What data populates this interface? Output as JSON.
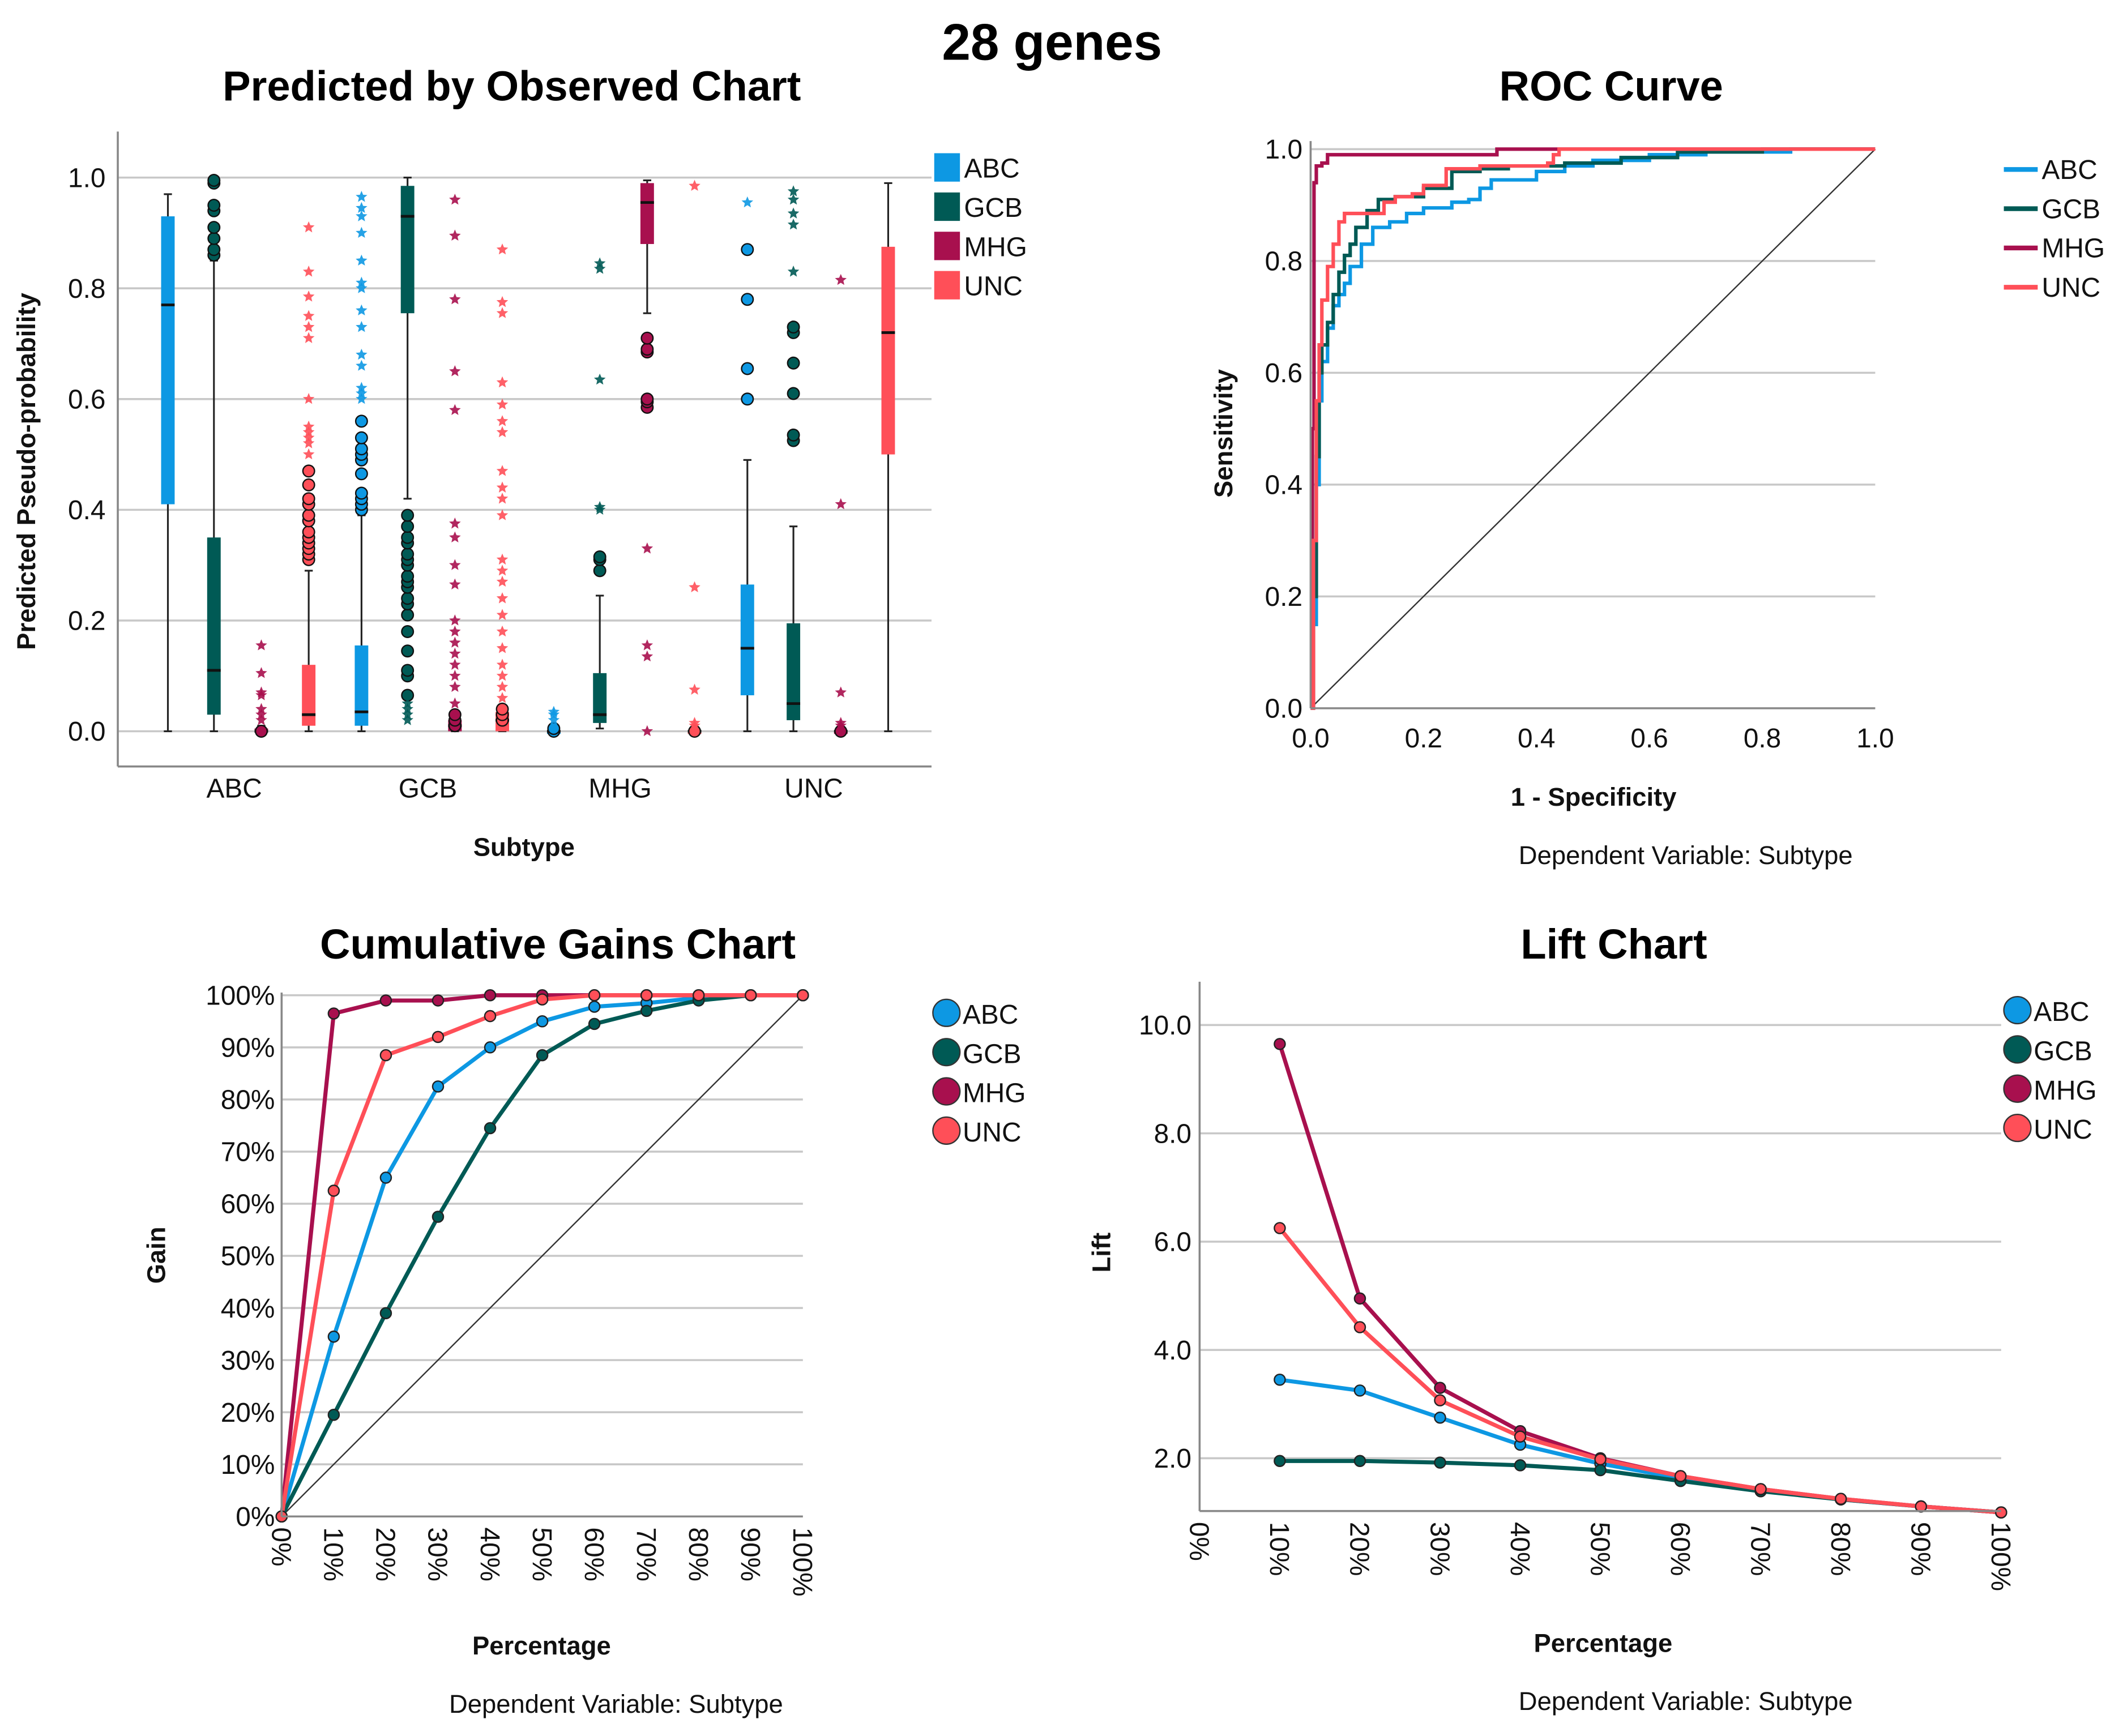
{
  "figure_title": "28 genes",
  "colors": {
    "ABC": "#0d98e3",
    "GCB": "#005a55",
    "MHG": "#a8104e",
    "UNC": "#ff4f58"
  },
  "chart_data": [
    {
      "id": "boxplot",
      "type": "box",
      "title": "Predicted by Observed Chart",
      "xlabel": "Subtype",
      "ylabel": "Predicted Pseudo-probability",
      "ylim": [
        0.0,
        1.0
      ],
      "yticks": [
        "0.0",
        "0.2",
        "0.4",
        "0.6",
        "0.8",
        "1.0"
      ],
      "ytick_values": [
        0.0,
        0.2,
        0.4,
        0.6,
        0.8,
        1.0
      ],
      "categories": [
        "ABC",
        "GCB",
        "MHG",
        "UNC"
      ],
      "legend": [
        "ABC",
        "GCB",
        "MHG",
        "UNC"
      ],
      "legend_position": "top-right",
      "grid": true,
      "groups": [
        {
          "category": "ABC",
          "boxes": [
            {
              "series": "ABC",
              "min": 0.0,
              "q1": 0.41,
              "median": 0.77,
              "q3": 0.93,
              "max": 0.97,
              "outliers": [],
              "extremes": []
            },
            {
              "series": "GCB",
              "min": 0.0,
              "q1": 0.03,
              "median": 0.11,
              "q3": 0.35,
              "max": 0.85,
              "outliers": [
                0.86,
                0.87,
                0.89,
                0.91,
                0.94,
                0.95,
                0.99,
                0.995
              ],
              "extremes": []
            },
            {
              "series": "MHG",
              "min": 0.0,
              "q1": 0.0,
              "median": 0.0,
              "q3": 0.005,
              "max": 0.01,
              "outliers": [
                0.0
              ],
              "extremes": [
                0.02,
                0.03,
                0.04,
                0.065,
                0.07,
                0.105,
                0.155
              ]
            },
            {
              "series": "UNC",
              "min": 0.0,
              "q1": 0.01,
              "median": 0.03,
              "q3": 0.12,
              "max": 0.29,
              "outliers": [
                0.31,
                0.32,
                0.33,
                0.34,
                0.35,
                0.36,
                0.38,
                0.39,
                0.41,
                0.42,
                0.445,
                0.47
              ],
              "extremes": [
                0.5,
                0.52,
                0.53,
                0.54,
                0.55,
                0.6,
                0.71,
                0.73,
                0.75,
                0.785,
                0.83,
                0.91
              ]
            }
          ]
        },
        {
          "category": "GCB",
          "boxes": [
            {
              "series": "ABC",
              "min": 0.0,
              "q1": 0.01,
              "median": 0.035,
              "q3": 0.155,
              "max": 0.39,
              "outliers": [
                0.4,
                0.41,
                0.42,
                0.43,
                0.465,
                0.49,
                0.5,
                0.51,
                0.53,
                0.56
              ],
              "extremes": [
                0.6,
                0.61,
                0.62,
                0.66,
                0.68,
                0.73,
                0.76,
                0.8,
                0.81,
                0.85,
                0.9,
                0.93,
                0.945,
                0.965
              ]
            },
            {
              "series": "GCB",
              "min": 0.42,
              "q1": 0.755,
              "median": 0.93,
              "q3": 0.985,
              "max": 1.0,
              "outliers": [
                0.065,
                0.1,
                0.11,
                0.145,
                0.18,
                0.21,
                0.23,
                0.24,
                0.26,
                0.27,
                0.28,
                0.3,
                0.31,
                0.32,
                0.34,
                0.35,
                0.37,
                0.39
              ],
              "extremes": [
                0.02,
                0.03,
                0.04,
                0.05
              ]
            },
            {
              "series": "MHG",
              "min": 0.0,
              "q1": 0.0,
              "median": 0.01,
              "q3": 0.02,
              "max": 0.03,
              "outliers": [
                0.01,
                0.02,
                0.03
              ],
              "extremes": [
                0.05,
                0.08,
                0.1,
                0.12,
                0.14,
                0.16,
                0.18,
                0.2,
                0.265,
                0.3,
                0.35,
                0.375,
                0.58,
                0.65,
                0.78,
                0.895,
                0.96
              ]
            },
            {
              "series": "UNC",
              "min": 0.0,
              "q1": 0.0,
              "median": 0.02,
              "q3": 0.035,
              "max": 0.04,
              "outliers": [
                0.02,
                0.03,
                0.04
              ],
              "extremes": [
                0.06,
                0.08,
                0.1,
                0.12,
                0.15,
                0.18,
                0.21,
                0.24,
                0.27,
                0.29,
                0.31,
                0.39,
                0.42,
                0.44,
                0.47,
                0.54,
                0.56,
                0.59,
                0.63,
                0.755,
                0.775,
                0.87
              ]
            }
          ]
        },
        {
          "category": "MHG",
          "boxes": [
            {
              "series": "ABC",
              "min": 0.0,
              "q1": 0.0,
              "median": 0.0,
              "q3": 0.0,
              "max": 0.0,
              "outliers": [
                0.0,
                0.005
              ],
              "extremes": [
                0.02,
                0.03,
                0.035
              ]
            },
            {
              "series": "GCB",
              "min": 0.005,
              "q1": 0.015,
              "median": 0.03,
              "q3": 0.105,
              "max": 0.245,
              "outliers": [
                0.29,
                0.31,
                0.315
              ],
              "extremes": [
                0.4,
                0.405,
                0.635,
                0.835,
                0.845
              ]
            },
            {
              "series": "MHG",
              "min": 0.755,
              "q1": 0.88,
              "median": 0.955,
              "q3": 0.99,
              "max": 0.995,
              "outliers": [
                0.585,
                0.595,
                0.6,
                0.685,
                0.69,
                0.71
              ],
              "extremes": [
                0.0,
                0.135,
                0.155,
                0.33
              ]
            },
            {
              "series": "UNC",
              "min": 0.0,
              "q1": 0.0,
              "median": 0.0,
              "q3": 0.0,
              "max": 0.0,
              "outliers": [
                0.0
              ],
              "extremes": [
                0.01,
                0.015,
                0.075,
                0.26,
                0.985
              ]
            }
          ]
        },
        {
          "category": "UNC",
          "boxes": [
            {
              "series": "ABC",
              "min": 0.0,
              "q1": 0.065,
              "median": 0.15,
              "q3": 0.265,
              "max": 0.49,
              "outliers": [
                0.6,
                0.655,
                0.78,
                0.87
              ],
              "extremes": [
                0.955
              ]
            },
            {
              "series": "GCB",
              "min": 0.0,
              "q1": 0.02,
              "median": 0.05,
              "q3": 0.195,
              "max": 0.37,
              "outliers": [
                0.525,
                0.535,
                0.61,
                0.665,
                0.72,
                0.73
              ],
              "extremes": [
                0.83,
                0.915,
                0.935,
                0.96,
                0.975
              ]
            },
            {
              "series": "MHG",
              "min": 0.0,
              "q1": 0.0,
              "median": 0.0,
              "q3": 0.0,
              "max": 0.0,
              "outliers": [
                0.0
              ],
              "extremes": [
                0.01,
                0.015,
                0.07,
                0.41,
                0.815
              ]
            },
            {
              "series": "UNC",
              "min": 0.0,
              "q1": 0.5,
              "median": 0.72,
              "q3": 0.875,
              "max": 0.99,
              "outliers": [],
              "extremes": []
            }
          ]
        }
      ]
    },
    {
      "id": "roc",
      "type": "line",
      "title": "ROC Curve",
      "xlabel": "1 - Specificity",
      "ylabel": "Sensitivity",
      "footnote": "Dependent Variable: Subtype",
      "xlim": [
        0.0,
        1.0
      ],
      "ylim": [
        0.0,
        1.0
      ],
      "xticks": [
        "0.0",
        "0.2",
        "0.4",
        "0.6",
        "0.8",
        "1.0"
      ],
      "yticks": [
        "0.0",
        "0.2",
        "0.4",
        "0.6",
        "0.8",
        "1.0"
      ],
      "tick_values": [
        0.0,
        0.2,
        0.4,
        0.6,
        0.8,
        1.0
      ],
      "legend_position": "right",
      "grid": true,
      "reference_line": [
        [
          0,
          0
        ],
        [
          1,
          1
        ]
      ],
      "series": [
        {
          "name": "ABC",
          "x": [
            0,
            0.005,
            0.01,
            0.015,
            0.02,
            0.03,
            0.04,
            0.05,
            0.06,
            0.07,
            0.09,
            0.11,
            0.14,
            0.17,
            0.2,
            0.25,
            0.28,
            0.3,
            0.32,
            0.4,
            0.45,
            0.5,
            0.6,
            0.7,
            0.85,
            1.0
          ],
          "y": [
            0,
            0.15,
            0.4,
            0.55,
            0.62,
            0.68,
            0.72,
            0.74,
            0.76,
            0.79,
            0.83,
            0.86,
            0.87,
            0.885,
            0.895,
            0.905,
            0.91,
            0.93,
            0.945,
            0.96,
            0.97,
            0.98,
            0.99,
            0.995,
            1.0,
            1.0
          ]
        },
        {
          "name": "GCB",
          "x": [
            0,
            0.005,
            0.01,
            0.015,
            0.02,
            0.03,
            0.04,
            0.05,
            0.06,
            0.07,
            0.08,
            0.1,
            0.12,
            0.15,
            0.2,
            0.25,
            0.3,
            0.35,
            0.45,
            0.55,
            0.65,
            0.8,
            1.0
          ],
          "y": [
            0,
            0.2,
            0.45,
            0.6,
            0.65,
            0.69,
            0.74,
            0.78,
            0.81,
            0.83,
            0.86,
            0.89,
            0.91,
            0.915,
            0.93,
            0.96,
            0.965,
            0.97,
            0.975,
            0.985,
            0.995,
            1.0,
            1.0
          ]
        },
        {
          "name": "MHG",
          "x": [
            0,
            0.003,
            0.006,
            0.01,
            0.02,
            0.03,
            0.33,
            0.33,
            1.0
          ],
          "y": [
            0,
            0.5,
            0.94,
            0.97,
            0.975,
            0.99,
            0.99,
            1.0,
            1.0
          ]
        },
        {
          "name": "UNC",
          "x": [
            0,
            0.005,
            0.01,
            0.015,
            0.02,
            0.03,
            0.04,
            0.05,
            0.06,
            0.12,
            0.13,
            0.15,
            0.18,
            0.2,
            0.24,
            0.3,
            0.42,
            0.43,
            0.44,
            1.0
          ],
          "y": [
            0,
            0.3,
            0.55,
            0.65,
            0.73,
            0.79,
            0.83,
            0.87,
            0.885,
            0.885,
            0.905,
            0.915,
            0.92,
            0.935,
            0.965,
            0.97,
            0.975,
            0.99,
            1.0,
            1.0
          ]
        }
      ]
    },
    {
      "id": "gains",
      "type": "line",
      "title": "Cumulative Gains Chart",
      "xlabel": "Percentage",
      "ylabel": "Gain",
      "footnote": "Dependent Variable: Subtype",
      "xlim": [
        0,
        100
      ],
      "ylim": [
        0,
        100
      ],
      "x": [
        0,
        10,
        20,
        30,
        40,
        50,
        60,
        70,
        80,
        90,
        100
      ],
      "xticks": [
        "0%",
        "10%",
        "20%",
        "30%",
        "40%",
        "50%",
        "60%",
        "70%",
        "80%",
        "90%",
        "100%"
      ],
      "yticks": [
        "0%",
        "10%",
        "20%",
        "30%",
        "40%",
        "50%",
        "60%",
        "70%",
        "80%",
        "90%",
        "100%"
      ],
      "legend_position": "right",
      "grid": true,
      "reference_line": [
        [
          0,
          0
        ],
        [
          100,
          100
        ]
      ],
      "series": [
        {
          "name": "ABC",
          "values": [
            0,
            34.5,
            65,
            82.5,
            90,
            95,
            97.8,
            98.5,
            99.5,
            100,
            100
          ]
        },
        {
          "name": "GCB",
          "values": [
            0,
            19.5,
            39,
            57.5,
            74.5,
            88.5,
            94.5,
            97,
            99,
            100,
            100
          ]
        },
        {
          "name": "MHG",
          "values": [
            0,
            96.5,
            99,
            99,
            100,
            100,
            100,
            100,
            100,
            100,
            100
          ]
        },
        {
          "name": "UNC",
          "values": [
            0,
            62.5,
            88.5,
            92,
            96,
            99.2,
            100,
            100,
            100,
            100,
            100
          ]
        }
      ]
    },
    {
      "id": "lift",
      "type": "line",
      "title": "Lift Chart",
      "xlabel": "Percentage",
      "ylabel": "Lift",
      "footnote": "Dependent Variable: Subtype",
      "xlim": [
        0,
        100
      ],
      "ylim": [
        1.0,
        10.5
      ],
      "x": [
        10,
        20,
        30,
        40,
        50,
        60,
        70,
        80,
        90,
        100
      ],
      "xticks": [
        "0%",
        "10%",
        "20%",
        "30%",
        "40%",
        "50%",
        "60%",
        "70%",
        "80%",
        "90%",
        "100%"
      ],
      "xtick_values": [
        0,
        10,
        20,
        30,
        40,
        50,
        60,
        70,
        80,
        90,
        100
      ],
      "yticks": [
        "2.0",
        "4.0",
        "6.0",
        "8.0",
        "10.0"
      ],
      "ytick_values": [
        2.0,
        4.0,
        6.0,
        8.0,
        10.0
      ],
      "legend_position": "top-right",
      "grid": true,
      "series": [
        {
          "name": "ABC",
          "values": [
            3.45,
            3.25,
            2.75,
            2.25,
            1.9,
            1.63,
            1.41,
            1.24,
            1.11,
            1.0
          ]
        },
        {
          "name": "GCB",
          "values": [
            1.95,
            1.95,
            1.92,
            1.87,
            1.78,
            1.58,
            1.39,
            1.24,
            1.11,
            1.0
          ]
        },
        {
          "name": "MHG",
          "values": [
            9.65,
            4.95,
            3.3,
            2.5,
            2.0,
            1.67,
            1.43,
            1.25,
            1.11,
            1.0
          ]
        },
        {
          "name": "UNC",
          "values": [
            6.25,
            4.42,
            3.07,
            2.4,
            1.98,
            1.67,
            1.43,
            1.25,
            1.11,
            1.0
          ]
        }
      ]
    }
  ]
}
